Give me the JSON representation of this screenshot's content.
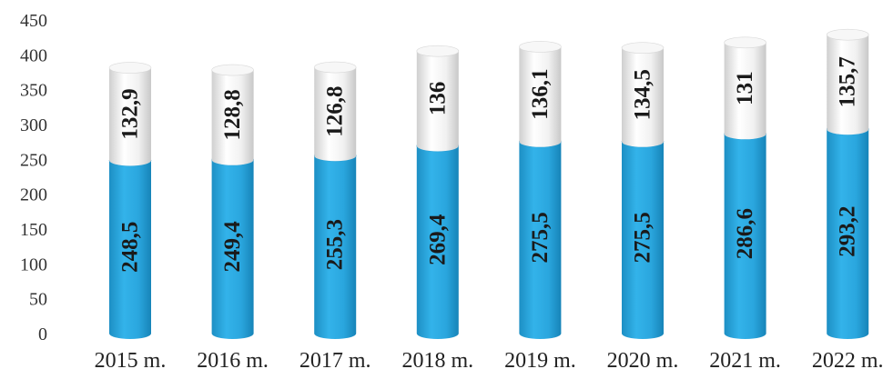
{
  "chart_data": {
    "type": "bar",
    "stacked": true,
    "categories": [
      "2015 m.",
      "2016 m.",
      "2017 m.",
      "2018 m.",
      "2019 m.",
      "2020 m.",
      "2021 m.",
      "2022 m."
    ],
    "series": [
      {
        "values": [
          248.5,
          249.4,
          255.3,
          269.4,
          275.5,
          275.5,
          286.6,
          293.2
        ],
        "color": "#29a8e0"
      },
      {
        "values": [
          132.9,
          128.8,
          126.8,
          136,
          136.1,
          134.5,
          131,
          135.7
        ],
        "color": "#f2f2f2"
      }
    ],
    "data_labels": [
      [
        "248,5",
        "249,4",
        "255,3",
        "269,4",
        "275,5",
        "275,5",
        "286,6",
        "293,2"
      ],
      [
        "132,9",
        "128,8",
        "126,8",
        "136",
        "136,1",
        "134,5",
        "131",
        "135,7"
      ]
    ],
    "y_ticks": [
      "0",
      "50",
      "100",
      "150",
      "200",
      "250",
      "300",
      "350",
      "400",
      "450"
    ],
    "ylim": [
      0,
      450
    ],
    "grid": false,
    "legend": "none",
    "bar_shape": "cylinder"
  }
}
